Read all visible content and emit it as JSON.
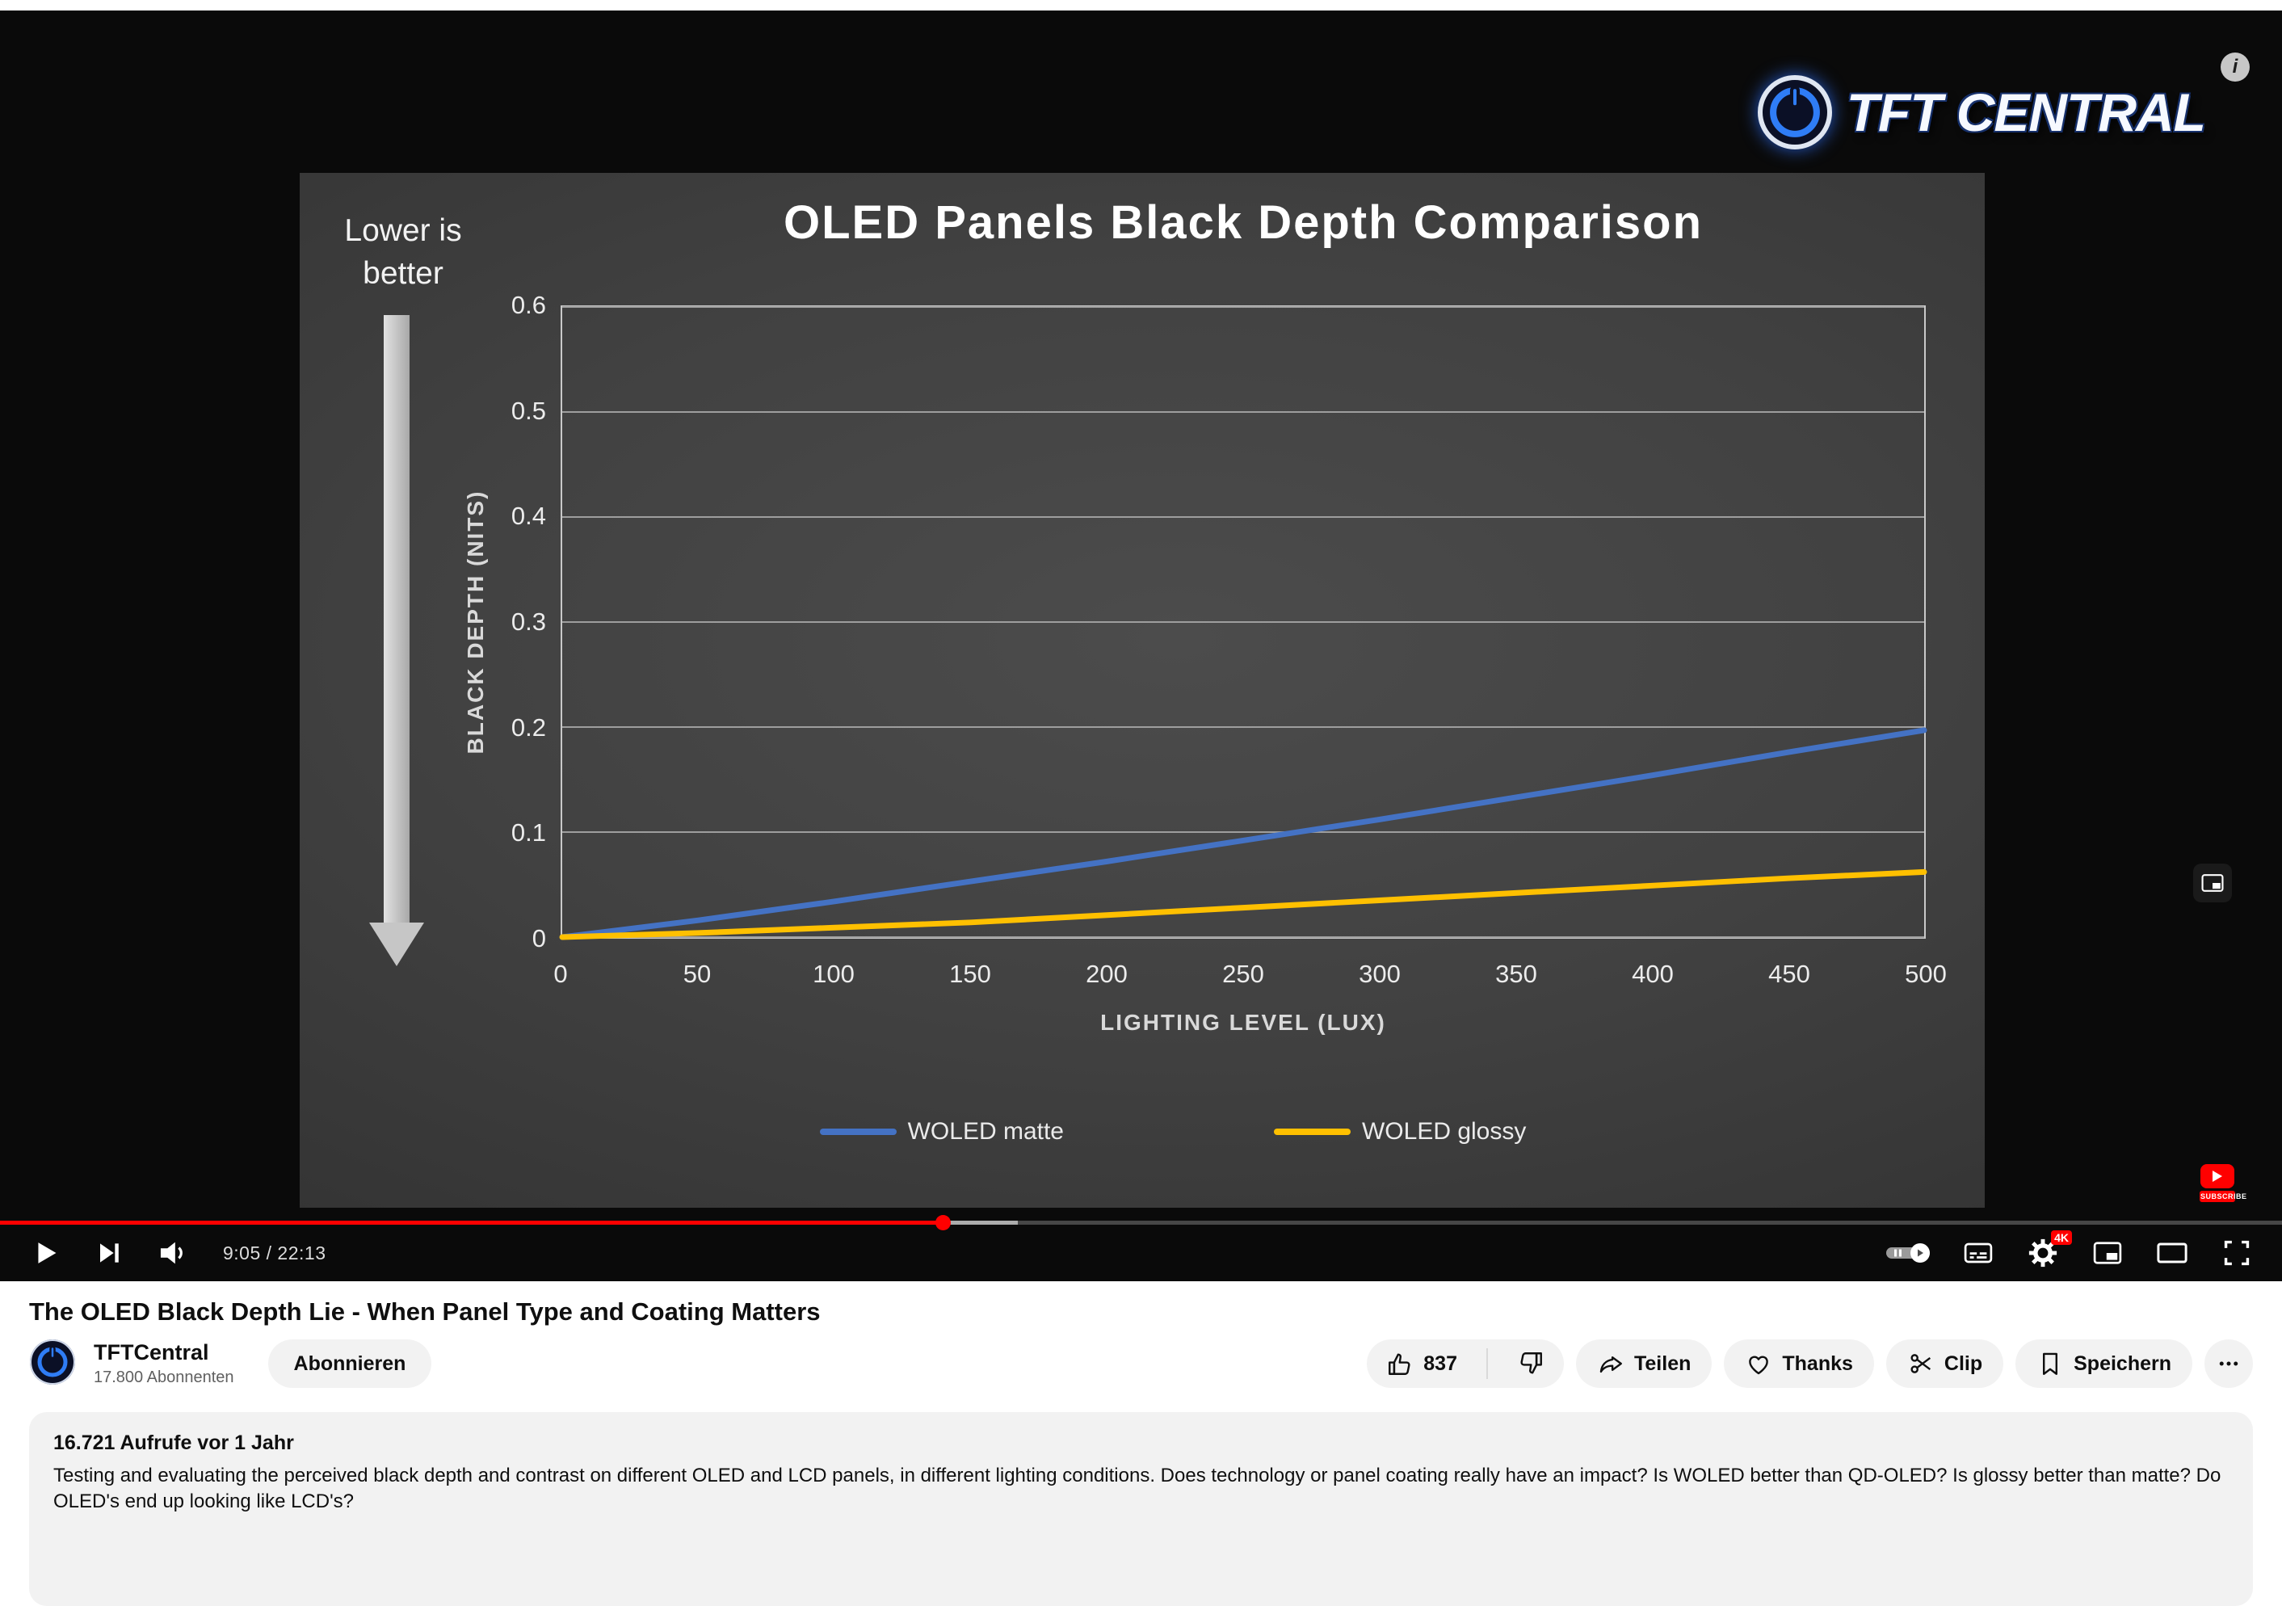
{
  "player": {
    "time_display": "9:05 / 22:13",
    "progress_percent": 41.3,
    "buffer_percent": 44.6,
    "quality_badge": "4K",
    "logo": {
      "word1": "TFT",
      "word2": "CENTRAL"
    },
    "subscribe_badge_label": "SUBSCRIBE",
    "info_label": "i"
  },
  "slide": {
    "note_line1": "Lower is",
    "note_line2": "better"
  },
  "chart_data": {
    "type": "line",
    "title": "OLED Panels Black Depth Comparison",
    "xlabel": "LIGHTING LEVEL (LUX)",
    "ylabel": "BLACK DEPTH (NITS)",
    "x": [
      0,
      50,
      100,
      150,
      200,
      250,
      300,
      350,
      400,
      450,
      500
    ],
    "series": [
      {
        "name": "WOLED matte",
        "color": "#4472C4",
        "values": [
          0,
          0.016,
          0.034,
          0.053,
          0.072,
          0.092,
          0.112,
          0.133,
          0.154,
          0.176,
          0.197
        ]
      },
      {
        "name": "WOLED glossy",
        "color": "#FFC000",
        "values": [
          0,
          0.004,
          0.009,
          0.014,
          0.021,
          0.028,
          0.035,
          0.042,
          0.049,
          0.056,
          0.062
        ]
      }
    ],
    "xlim": [
      0,
      500
    ],
    "ylim": [
      0,
      0.6
    ],
    "xticks": [
      0,
      50,
      100,
      150,
      200,
      250,
      300,
      350,
      400,
      450,
      500
    ],
    "yticks": [
      0,
      0.1,
      0.2,
      0.3,
      0.4,
      0.5,
      0.6
    ],
    "grid": "horizontal",
    "legend_position": "bottom"
  },
  "video_info": {
    "title": "The OLED Black Depth Lie - When Panel Type and Coating Matters",
    "channel_name": "TFTCentral",
    "channel_subscribers": "17.800 Abonnenten",
    "subscribe_label": "Abonnieren",
    "like_count": "837",
    "share_label": "Teilen",
    "thanks_label": "Thanks",
    "clip_label": "Clip",
    "save_label": "Speichern",
    "description_meta": "16.721 Aufrufe  vor 1 Jahr",
    "description_text": "Testing and evaluating the perceived black depth and contrast on different OLED and LCD panels, in different lighting conditions. Does technology or panel coating really have an impact? Is WOLED better than QD-OLED? Is glossy better than matte? Do OLED's end up looking like LCD's?"
  }
}
